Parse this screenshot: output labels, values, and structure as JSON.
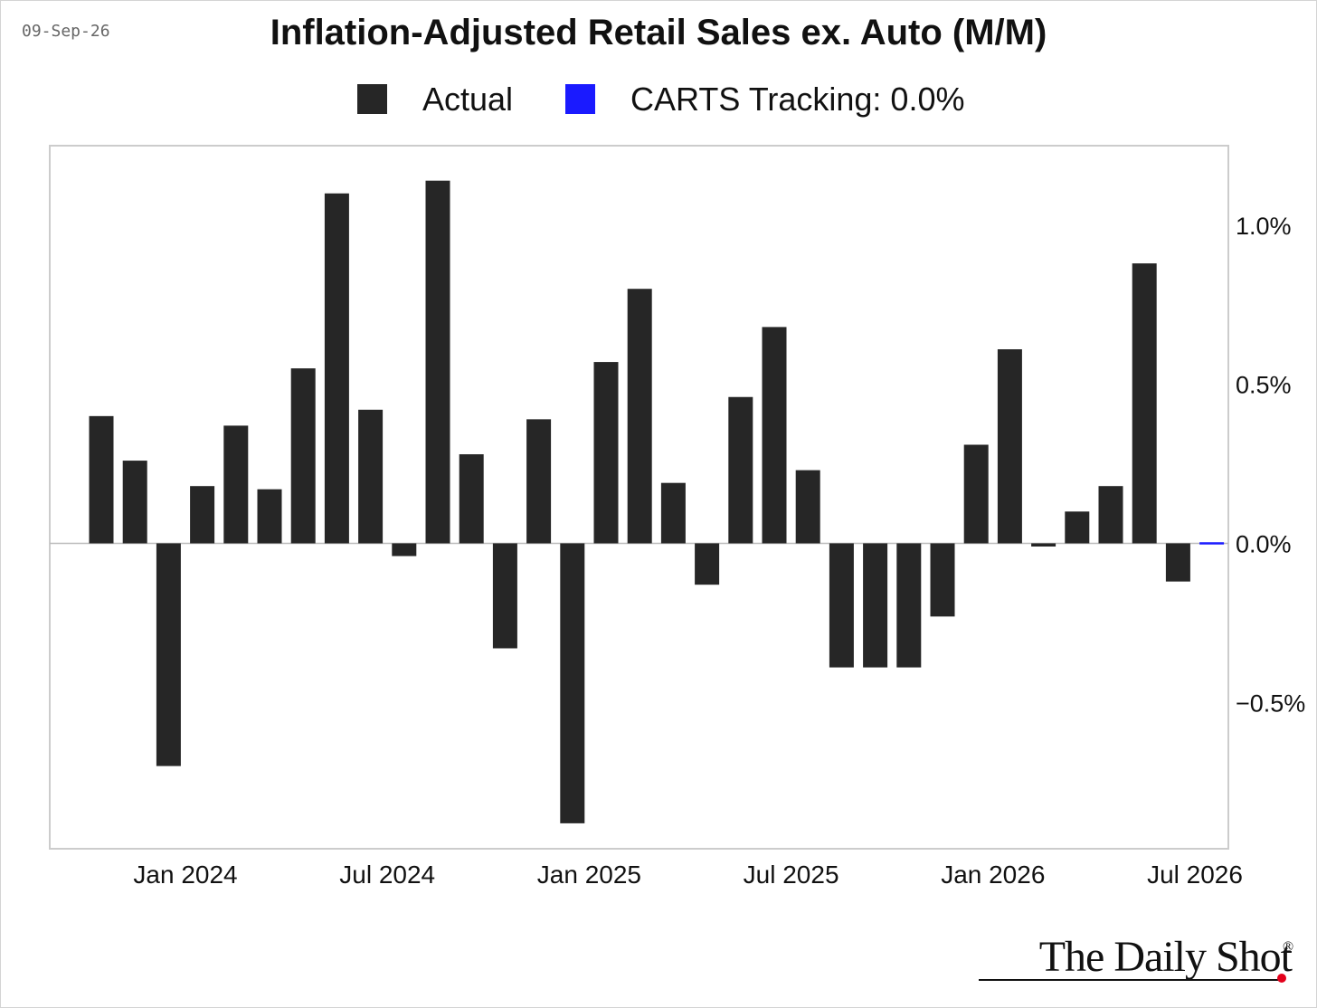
{
  "header": {
    "date": "09-Sep-26",
    "title": "Inflation-Adjusted Retail Sales ex. Auto (M/M)"
  },
  "legend": {
    "actual_label": "Actual",
    "tracking_label": "CARTS Tracking: 0.0%",
    "actual_color": "#262626",
    "tracking_color": "#1a1aff"
  },
  "brand": {
    "name": "The Daily Shot",
    "registered": "®",
    "dot_color": "#e3001b"
  },
  "chart_data": {
    "type": "bar",
    "title": "Inflation-Adjusted Retail Sales ex. Auto (M/M)",
    "xlabel": "",
    "ylabel": "",
    "ylim": [
      -0.96,
      1.25
    ],
    "y_ticks": [
      {
        "value": 1.0,
        "label": "1.0%"
      },
      {
        "value": 0.5,
        "label": "0.5%"
      },
      {
        "value": 0.0,
        "label": "0.0%"
      },
      {
        "value": -0.5,
        "label": "−0.5%"
      }
    ],
    "x_ticks": [
      {
        "index": 2.5,
        "label": "Jan 2024"
      },
      {
        "index": 8.5,
        "label": "Jul 2024"
      },
      {
        "index": 14.5,
        "label": "Jan 2025"
      },
      {
        "index": 20.5,
        "label": "Jul 2025"
      },
      {
        "index": 26.5,
        "label": "Jan 2026"
      },
      {
        "index": 32.5,
        "label": "Jul 2026"
      }
    ],
    "grid": false,
    "legend_position": "top-center",
    "series": [
      {
        "name": "Actual",
        "color": "#262626",
        "values": [
          0.4,
          0.26,
          -0.7,
          0.18,
          0.37,
          0.17,
          0.55,
          1.1,
          0.42,
          -0.04,
          1.14,
          0.28,
          -0.33,
          0.39,
          -0.88,
          0.57,
          0.8,
          0.19,
          -0.13,
          0.46,
          0.68,
          0.23,
          -0.39,
          -0.39,
          -0.39,
          -0.23,
          0.31,
          0.61,
          -0.01,
          0.1,
          0.18,
          0.88,
          -0.12
        ]
      },
      {
        "name": "CARTS Tracking: 0.0%",
        "color": "#1a1aff",
        "index": 33,
        "value": 0.0
      }
    ]
  }
}
